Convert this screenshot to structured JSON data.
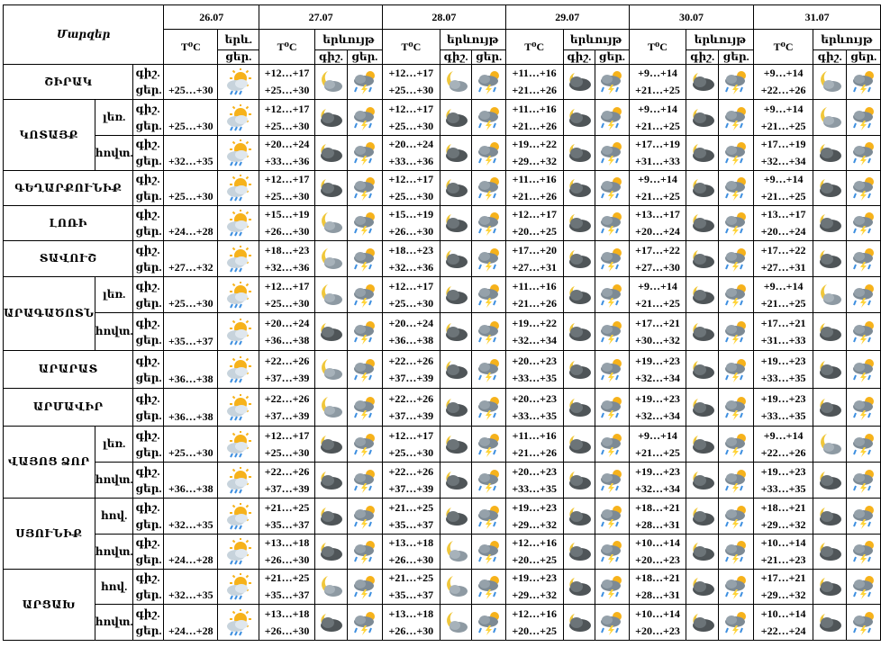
{
  "header": {
    "region_title": "Մարզեր",
    "dates": [
      "26.07",
      "27.07",
      "28.07",
      "29.07",
      "30.07",
      "31.07"
    ],
    "temp_label": "T⁰C",
    "phen_label_first": "երև.",
    "phen_label": "երևույթ",
    "night_label": "գիշ.",
    "day_label": "ցեր.",
    "day_label_first": "ցեր."
  },
  "rows": [
    {
      "region": "ՇԻՐԱԿ",
      "sub": "",
      "first": "+25…+30",
      "n": [
        "+12…+17",
        "+12…+17",
        "+11…+16",
        "+9…+14",
        "+9…+14"
      ],
      "d": [
        "+25…+30",
        "+25…+30",
        "+21…+26",
        "+21…+25",
        "+22…+26"
      ],
      "icons": [
        "partly-sunny",
        "moon-cloud",
        "storm",
        "moon-cloud",
        "storm",
        "night-cloud",
        "storm",
        "night-cloud",
        "storm",
        "moon-cloud",
        "storm"
      ]
    },
    {
      "region": "ԿՈՏԱՅՔ",
      "sub": "լեռ.",
      "first": "+25…+30",
      "n": [
        "+12…+17",
        "+12…+17",
        "+11…+16",
        "+9…+14",
        "+9…+14"
      ],
      "d": [
        "+25…+30",
        "+25…+30",
        "+21…+26",
        "+21…+25",
        "+21…+25"
      ],
      "icons": [
        "partly-sunny",
        "night-cloud",
        "storm",
        "night-cloud",
        "storm",
        "night-cloud",
        "storm",
        "night-cloud",
        "storm",
        "moon-cloud",
        "storm"
      ]
    },
    {
      "region": "",
      "sub": "հովտ.",
      "first": "+32…+35",
      "n": [
        "+20…+24",
        "+20…+24",
        "+19…+22",
        "+17…+19",
        "+17…+19"
      ],
      "d": [
        "+33…+36",
        "+33…+36",
        "+29…+32",
        "+31…+33",
        "+32…+34"
      ],
      "icons": [
        "partly-sunny",
        "night-cloud",
        "storm",
        "night-cloud",
        "storm",
        "night-cloud",
        "storm",
        "night-cloud",
        "storm",
        "night-cloud",
        "storm"
      ]
    },
    {
      "region": "ԳԵՂԱՐՔՈՒՆԻՔ",
      "sub": "",
      "first": "+25…+30",
      "n": [
        "+12…+17",
        "+12…+17",
        "+11…+16",
        "+9…+14",
        "+9…+14"
      ],
      "d": [
        "+25…+30",
        "+25…+30",
        "+21…+26",
        "+21…+25",
        "+21…+25"
      ],
      "icons": [
        "partly-sunny",
        "night-cloud",
        "storm",
        "night-cloud",
        "storm",
        "night-cloud",
        "storm",
        "night-cloud",
        "storm",
        "night-cloud",
        "storm"
      ]
    },
    {
      "region": "ԼՈՌԻ",
      "sub": "",
      "first": "+24…+28",
      "n": [
        "+15…+19",
        "+15…+19",
        "+12…+17",
        "+13…+17",
        "+13…+17"
      ],
      "d": [
        "+26…+30",
        "+26…+30",
        "+20…+25",
        "+20…+24",
        "+20…+24"
      ],
      "icons": [
        "partly-sunny",
        "moon-cloud",
        "storm",
        "night-cloud",
        "storm",
        "night-cloud",
        "storm",
        "night-cloud",
        "storm",
        "night-cloud",
        "storm"
      ]
    },
    {
      "region": "ՏԱՎՈՒՇ",
      "sub": "",
      "first": "+27…+32",
      "n": [
        "+18…+23",
        "+18…+23",
        "+17…+20",
        "+17…+22",
        "+17…+22"
      ],
      "d": [
        "+32…+36",
        "+32…+36",
        "+27…+31",
        "+27…+30",
        "+27…+31"
      ],
      "icons": [
        "partly-sunny",
        "moon-cloud",
        "storm",
        "night-cloud",
        "storm",
        "night-cloud",
        "storm",
        "night-cloud",
        "storm",
        "night-cloud",
        "storm"
      ]
    },
    {
      "region": "ԱՐԱԳԱԾՈՏՆ",
      "sub": "լեռ.",
      "first": "+25…+30",
      "n": [
        "+12…+17",
        "+12…+17",
        "+11…+16",
        "+9…+14",
        "+9…+14"
      ],
      "d": [
        "+25…+30",
        "+25…+30",
        "+21…+26",
        "+21…+25",
        "+21…+25"
      ],
      "icons": [
        "partly-sunny",
        "moon-cloud",
        "storm",
        "night-cloud",
        "storm",
        "night-cloud",
        "storm",
        "night-cloud",
        "storm",
        "moon-cloud",
        "storm"
      ]
    },
    {
      "region": "",
      "sub": "հովտ.",
      "first": "+35…+37",
      "n": [
        "+20…+24",
        "+20…+24",
        "+19…+22",
        "+17…+21",
        "+17…+21"
      ],
      "d": [
        "+36…+38",
        "+36…+38",
        "+32…+34",
        "+30…+32",
        "+31…+33"
      ],
      "icons": [
        "partly-sunny",
        "night-cloud",
        "storm",
        "night-cloud",
        "storm",
        "night-cloud",
        "storm",
        "night-cloud",
        "storm",
        "night-cloud",
        "storm"
      ]
    },
    {
      "region": "ԱՐԱՐԱՏ",
      "sub": "",
      "first": "+36…+38",
      "n": [
        "+22…+26",
        "+22…+26",
        "+20…+23",
        "+19…+23",
        "+19…+23"
      ],
      "d": [
        "+37…+39",
        "+37…+39",
        "+33…+35",
        "+32…+34",
        "+33…+35"
      ],
      "icons": [
        "partly-sunny",
        "moon-cloud",
        "storm",
        "night-cloud",
        "storm",
        "night-cloud",
        "storm",
        "night-cloud",
        "storm",
        "night-cloud",
        "storm"
      ]
    },
    {
      "region": "ԱՐՄԱՎԻՐ",
      "sub": "",
      "first": "+36…+38",
      "n": [
        "+22…+26",
        "+22…+26",
        "+20…+23",
        "+19…+23",
        "+19…+23"
      ],
      "d": [
        "+37…+39",
        "+37…+39",
        "+33…+35",
        "+32…+34",
        "+33…+35"
      ],
      "icons": [
        "partly-sunny",
        "moon-cloud",
        "storm",
        "night-cloud",
        "storm",
        "night-cloud",
        "storm",
        "night-cloud",
        "storm",
        "night-cloud",
        "storm"
      ]
    },
    {
      "region": "ՎԱՅՈՑ ՁՈՐ",
      "sub": "լեռ.",
      "first": "+25…+30",
      "n": [
        "+12…+17",
        "+12…+17",
        "+11…+16",
        "+9…+14",
        "+9…+14"
      ],
      "d": [
        "+25…+30",
        "+25…+30",
        "+21…+26",
        "+21…+25",
        "+22…+26"
      ],
      "icons": [
        "partly-sunny",
        "night-cloud",
        "storm",
        "night-cloud",
        "storm",
        "night-cloud",
        "storm",
        "night-cloud",
        "storm",
        "moon-cloud",
        "storm"
      ]
    },
    {
      "region": "",
      "sub": "հովտ.",
      "first": "+36…+38",
      "n": [
        "+22…+26",
        "+22…+26",
        "+20…+23",
        "+19…+23",
        "+19…+23"
      ],
      "d": [
        "+37…+39",
        "+37…+39",
        "+33…+35",
        "+32…+34",
        "+33…+35"
      ],
      "icons": [
        "partly-sunny",
        "night-cloud",
        "storm",
        "night-cloud",
        "storm",
        "night-cloud",
        "storm",
        "night-cloud",
        "storm",
        "night-cloud",
        "storm"
      ]
    },
    {
      "region": "ՍՅՈՒՆԻՔ",
      "sub": "հով.",
      "first": "+32…+35",
      "n": [
        "+21…+25",
        "+21…+25",
        "+19…+23",
        "+18…+21",
        "+18…+21"
      ],
      "d": [
        "+35…+37",
        "+35…+37",
        "+29…+32",
        "+28…+31",
        "+29…+32"
      ],
      "icons": [
        "partly-sunny",
        "night-cloud",
        "storm",
        "night-cloud",
        "storm",
        "night-cloud",
        "storm",
        "night-cloud",
        "storm",
        "night-cloud",
        "storm"
      ]
    },
    {
      "region": "",
      "sub": "հովտ.",
      "first": "+24…+28",
      "n": [
        "+13…+18",
        "+13…+18",
        "+12…+16",
        "+10…+14",
        "+10…+14"
      ],
      "d": [
        "+26…+30",
        "+26…+30",
        "+20…+25",
        "+20…+23",
        "+21…+23"
      ],
      "icons": [
        "partly-sunny",
        "night-cloud",
        "storm",
        "moon-cloud",
        "storm",
        "night-cloud",
        "storm",
        "night-cloud",
        "storm",
        "night-cloud",
        "storm"
      ]
    },
    {
      "region": "ԱՐՑԱԽ",
      "sub": "հով.",
      "first": "+32…+35",
      "n": [
        "+21…+25",
        "+21…+25",
        "+19…+23",
        "+18…+21",
        "+17…+21"
      ],
      "d": [
        "+35…+37",
        "+35…+37",
        "+29…+32",
        "+28…+31",
        "+29…+32"
      ],
      "icons": [
        "partly-sunny",
        "moon-cloud",
        "storm",
        "moon-cloud",
        "storm",
        "night-cloud",
        "storm",
        "night-cloud",
        "storm",
        "night-cloud",
        "storm"
      ]
    },
    {
      "region": "",
      "sub": "հովտ.",
      "first": "+24…+28",
      "n": [
        "+13…+18",
        "+13…+18",
        "+12…+16",
        "+10…+14",
        "+10…+14"
      ],
      "d": [
        "+26…+30",
        "+26…+30",
        "+20…+25",
        "+20…+23",
        "+22…+24"
      ],
      "icons": [
        "partly-sunny",
        "night-cloud",
        "storm",
        "moon-cloud",
        "storm",
        "night-cloud",
        "storm",
        "night-cloud",
        "storm",
        "night-cloud",
        "storm"
      ]
    }
  ],
  "colors": {
    "sun": "#f6b21b",
    "cloud": "#8e9aa3",
    "cloud_dark": "#4f5558",
    "rain": "#3d8fe0",
    "moon": "#f0c73a",
    "bolt": "#ffd43b"
  }
}
